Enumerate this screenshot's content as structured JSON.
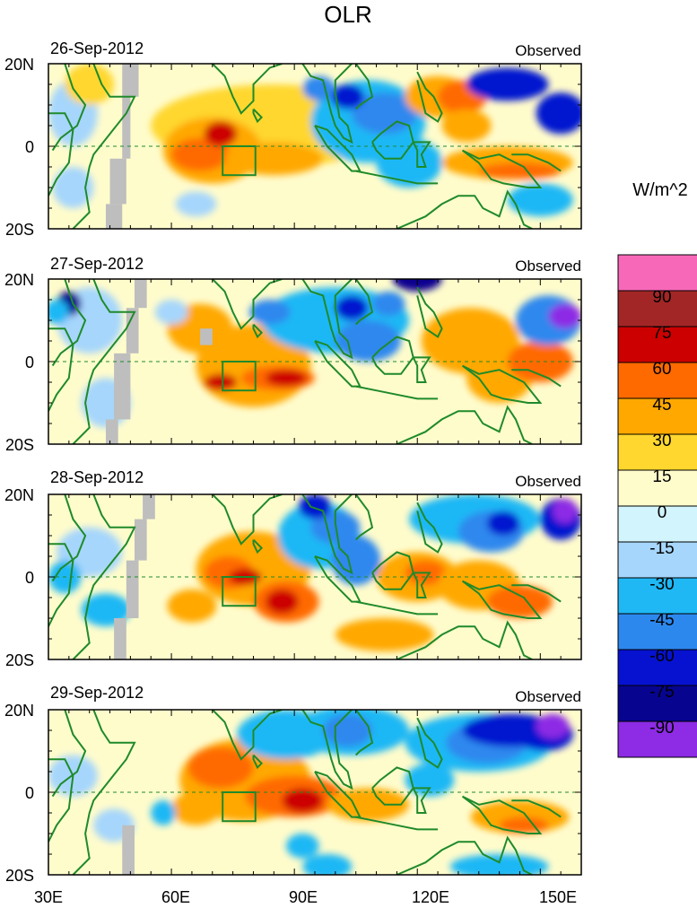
{
  "title": "OLR",
  "units": "W/m^2",
  "panels": [
    {
      "date": "26-Sep-2012",
      "label": "Observed"
    },
    {
      "date": "27-Sep-2012",
      "label": "Observed"
    },
    {
      "date": "28-Sep-2012",
      "label": "Observed"
    },
    {
      "date": "29-Sep-2012",
      "label": "Observed"
    }
  ],
  "lat_labels": [
    "20N",
    "0",
    "20S"
  ],
  "lon_labels": [
    "30E",
    "60E",
    "90E",
    "120E",
    "150E"
  ],
  "colorbar": {
    "labels": [
      "90",
      "75",
      "60",
      "45",
      "30",
      "15",
      "0",
      "-15",
      "-30",
      "-45",
      "-60",
      "-75",
      "-90"
    ],
    "colors": [
      "#f768b8",
      "#a32626",
      "#cc0000",
      "#ff6a00",
      "#ffa800",
      "#ffd72e",
      "#fffccc",
      "#d2f4fc",
      "#a6d6fc",
      "#1fb8f5",
      "#2d88ee",
      "#0612cf",
      "#07058f",
      "#8d2be5"
    ]
  },
  "missing_color": "#bebebe",
  "coast_color": "#1f8a2a"
}
